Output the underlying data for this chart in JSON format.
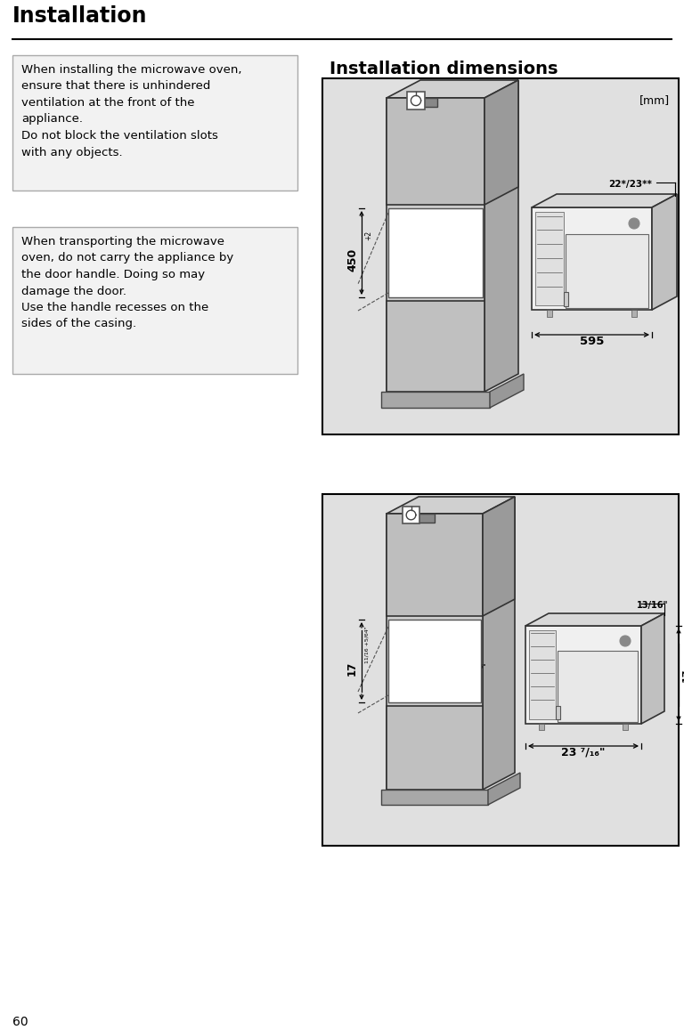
{
  "page_bg": "#ffffff",
  "title": "Installation",
  "section_title": "Installation dimensions",
  "box1_text": "When installing the microwave oven,\nensure that there is unhindered\nventilation at the front of the\nappliance.\nDo not block the ventilation slots\nwith any objects.",
  "box2_text": "When transporting the microwave\noven, do not carry the appliance by\nthe door handle. Doing so may\ndamage the door.\nUse the handle recesses on the\nsides of the casing.",
  "page_number": "60",
  "diag_bg": "#e0e0e0",
  "box_border": "#aaaaaa",
  "box_fill": "#f2f2f2",
  "dark_line": "#1a1a1a",
  "cab_front": "#cccccc",
  "cab_top": "#b8b8b8",
  "cab_side": "#a8a8a8",
  "cab_upper_front": "#bebebe",
  "cab_upper_top": "#d0d0d0",
  "cab_upper_side": "#9a9a9a",
  "cav_fill": "#f5f5f5",
  "oven_front": "#f0f0f0",
  "oven_top": "#d8d8d8",
  "oven_side": "#c0c0c0"
}
